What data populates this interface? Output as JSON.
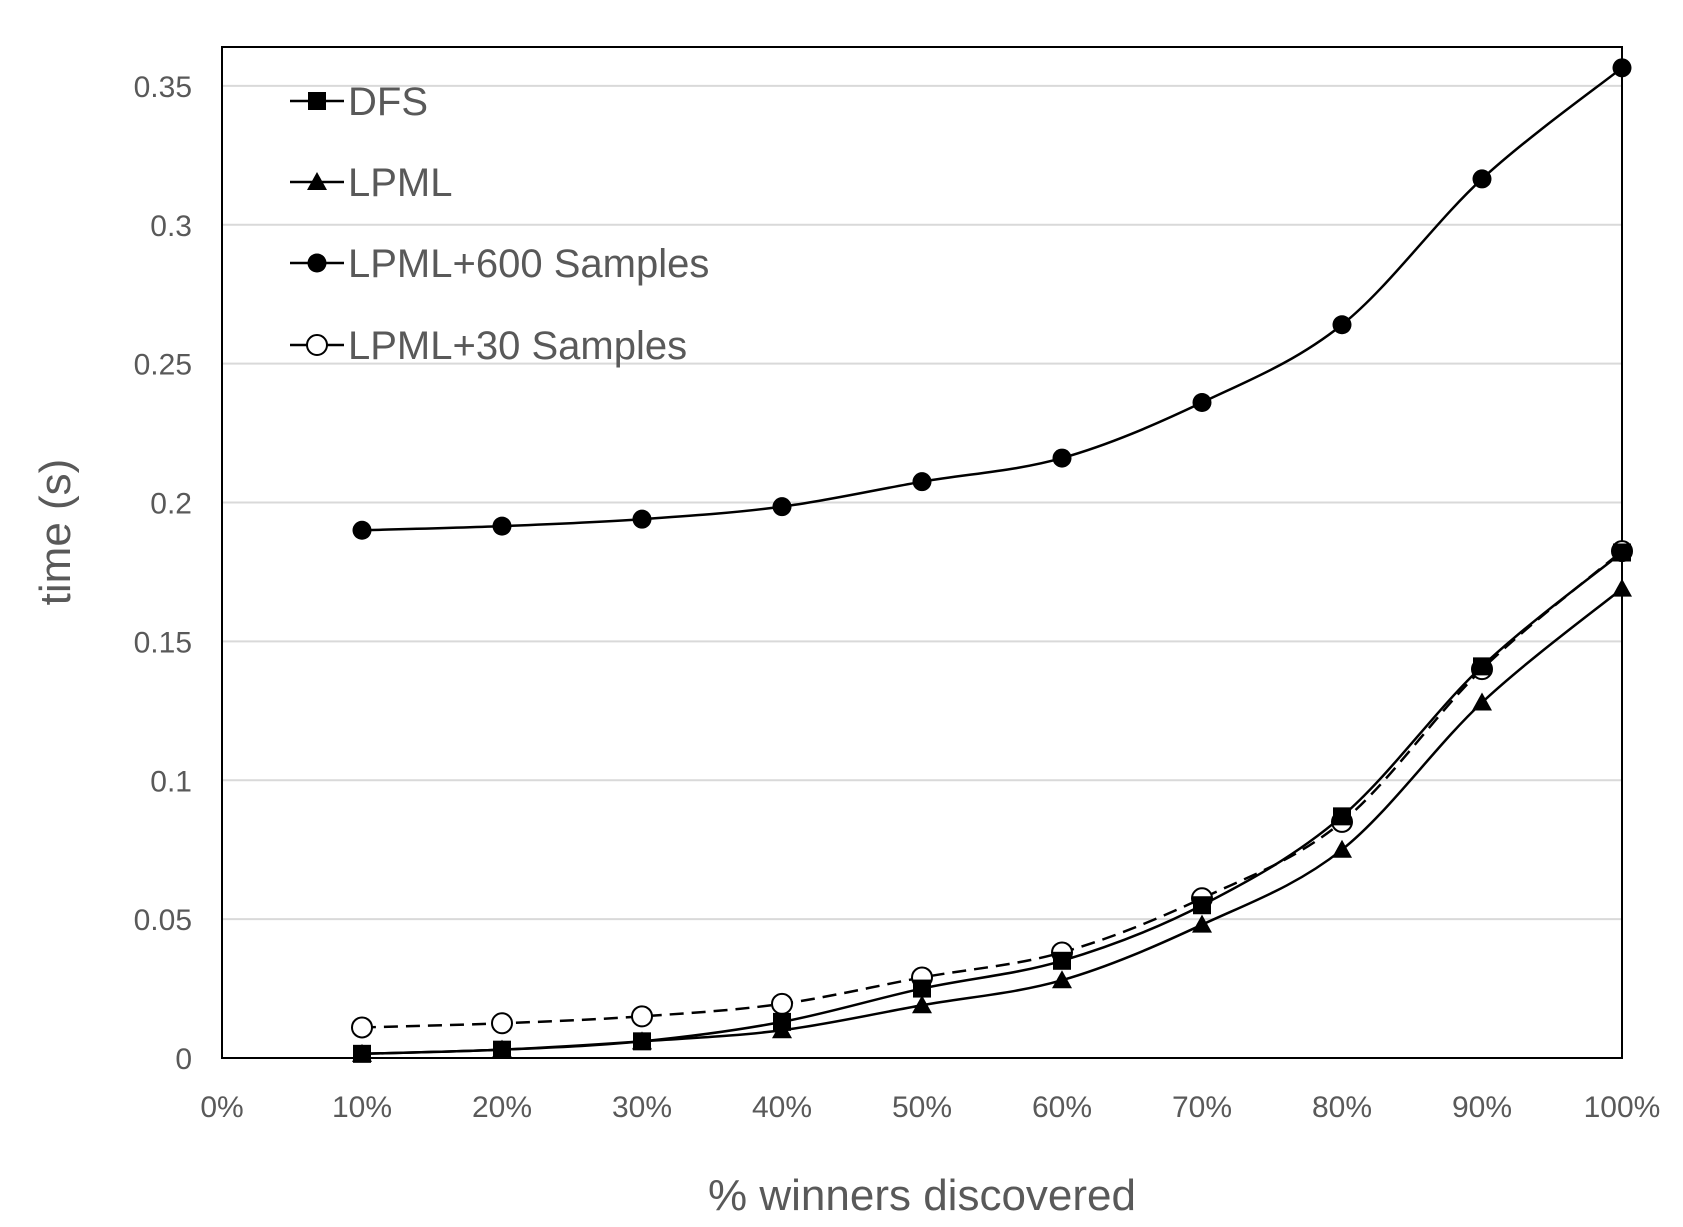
{
  "chart_data": {
    "type": "line",
    "title": "",
    "xlabel": "% winners discovered",
    "ylabel": "time (s)",
    "x_categories": [
      "0%",
      "10%",
      "20%",
      "30%",
      "40%",
      "50%",
      "60%",
      "70%",
      "80%",
      "90%",
      "100%"
    ],
    "x": [
      10,
      20,
      30,
      40,
      50,
      60,
      70,
      80,
      90,
      100
    ],
    "x_range": [
      0,
      100
    ],
    "ylim": [
      0,
      0.36
    ],
    "y_ticks": [
      0,
      0.05,
      0.1,
      0.15,
      0.2,
      0.25,
      0.3,
      0.35
    ],
    "y_tick_labels": [
      "0",
      "0.05",
      "0.1",
      "0.15",
      "0.2",
      "0.25",
      "0.3",
      "0.35"
    ],
    "grid": "horizontal",
    "legend_position": "top-left",
    "series": [
      {
        "name": "DFS",
        "marker": "square-filled",
        "line": "solid",
        "color": "#000000",
        "values": [
          0.0015,
          0.003,
          0.006,
          0.013,
          0.025,
          0.035,
          0.055,
          0.087,
          0.141,
          0.182
        ]
      },
      {
        "name": "LPML",
        "marker": "triangle-filled",
        "line": "solid",
        "color": "#000000",
        "values": [
          0.0015,
          0.003,
          0.006,
          0.01,
          0.019,
          0.028,
          0.048,
          0.075,
          0.128,
          0.169
        ]
      },
      {
        "name": "LPML+600 Samples",
        "marker": "circle-filled",
        "line": "solid",
        "color": "#000000",
        "values": [
          0.19,
          0.1915,
          0.194,
          0.1985,
          0.2075,
          0.216,
          0.236,
          0.264,
          0.3165,
          0.3565
        ]
      },
      {
        "name": "LPML+30 Samples",
        "marker": "circle-open",
        "line": "dashed",
        "color": "#000000",
        "values": [
          0.011,
          0.0125,
          0.015,
          0.0195,
          0.029,
          0.038,
          0.0575,
          0.085,
          0.14,
          0.1825
        ]
      }
    ]
  }
}
